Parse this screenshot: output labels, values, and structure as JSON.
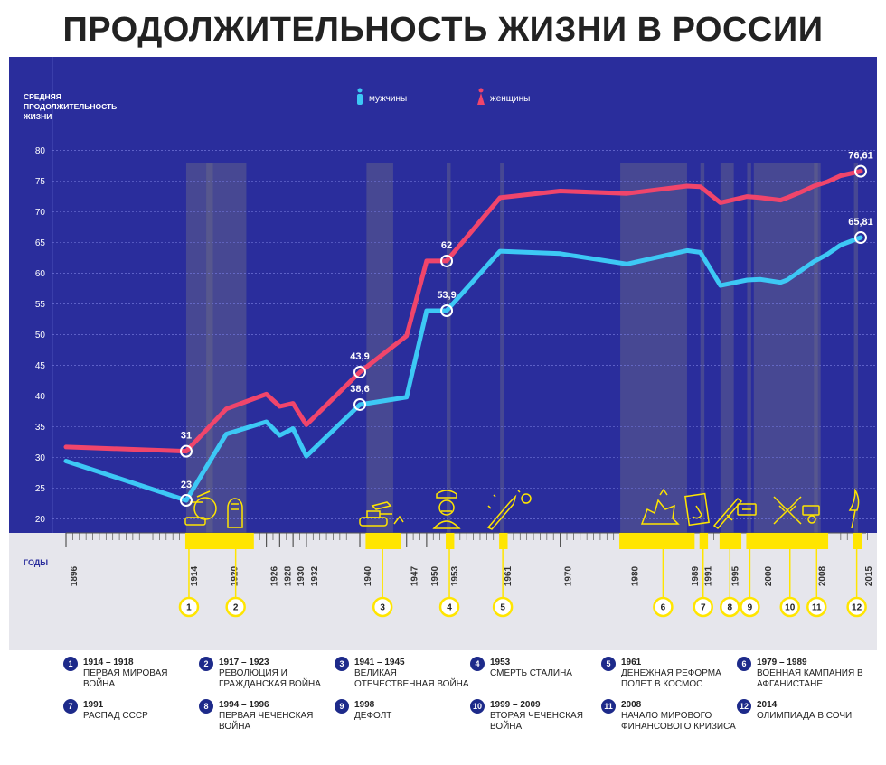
{
  "title": "ПРОДОЛЖИТЕЛЬНОСТЬ ЖИЗНИ В РОССИИ",
  "colors": {
    "panel": "#2a2d9c",
    "men": "#3dc8f5",
    "women": "#f0456b",
    "event": "#ffe500",
    "band": "#6b6b8a",
    "lower": "#e6e6ec"
  },
  "chart_data": {
    "type": "line",
    "ylabel": "СРЕДНЯЯ ПРОДОЛЖИТЕЛЬНОСТЬ ЖИЗНИ",
    "xlabel": "ГОДЫ",
    "ylim": [
      18,
      82
    ],
    "xlim": [
      1896,
      2016
    ],
    "yticks": [
      20,
      25,
      30,
      35,
      40,
      45,
      50,
      55,
      60,
      65,
      70,
      75,
      80
    ],
    "xticks": [
      1896,
      1914,
      1920,
      1926,
      1928,
      1930,
      1932,
      1940,
      1947,
      1950,
      1953,
      1961,
      1970,
      1980,
      1989,
      1991,
      1995,
      2000,
      2008,
      2015
    ],
    "legend": [
      {
        "name": "мужчины",
        "icon": "man-icon"
      },
      {
        "name": "женщины",
        "icon": "woman-icon"
      }
    ],
    "series": [
      {
        "name": "мужчины",
        "color": "#3dc8f5",
        "points": [
          [
            1896,
            29.4
          ],
          [
            1914,
            23
          ],
          [
            1920,
            33.8
          ],
          [
            1926,
            35.8
          ],
          [
            1928,
            33.6
          ],
          [
            1930,
            34.7
          ],
          [
            1932,
            30.2
          ],
          [
            1940,
            38.6
          ],
          [
            1947,
            39.8
          ],
          [
            1950,
            53.9
          ],
          [
            1953,
            53.9
          ],
          [
            1961,
            63.6
          ],
          [
            1970,
            63.2
          ],
          [
            1980,
            61.5
          ],
          [
            1989,
            63.7
          ],
          [
            1991,
            63.4
          ],
          [
            1994,
            58
          ],
          [
            1998,
            58.9
          ],
          [
            2000,
            59
          ],
          [
            2003,
            58.5
          ],
          [
            2004,
            58.9
          ],
          [
            2006,
            60.4
          ],
          [
            2008,
            61.9
          ],
          [
            2010,
            63.1
          ],
          [
            2012,
            64.6
          ],
          [
            2015,
            65.81
          ]
        ]
      },
      {
        "name": "женщины",
        "color": "#f0456b",
        "points": [
          [
            1896,
            31.7
          ],
          [
            1914,
            31
          ],
          [
            1920,
            37.9
          ],
          [
            1926,
            40.3
          ],
          [
            1928,
            38.3
          ],
          [
            1930,
            38.8
          ],
          [
            1932,
            35.3
          ],
          [
            1940,
            43.9
          ],
          [
            1947,
            49.8
          ],
          [
            1950,
            62
          ],
          [
            1953,
            62
          ],
          [
            1961,
            72.3
          ],
          [
            1970,
            73.4
          ],
          [
            1980,
            73
          ],
          [
            1989,
            74.2
          ],
          [
            1991,
            74.1
          ],
          [
            1994,
            71.5
          ],
          [
            1998,
            72.5
          ],
          [
            2000,
            72.3
          ],
          [
            2003,
            71.9
          ],
          [
            2004,
            72.3
          ],
          [
            2006,
            73.2
          ],
          [
            2008,
            74.2
          ],
          [
            2010,
            74.9
          ],
          [
            2012,
            75.9
          ],
          [
            2015,
            76.61
          ]
        ]
      }
    ],
    "annotations": [
      {
        "x": 1914,
        "y": 31,
        "label": "31",
        "series": "женщины"
      },
      {
        "x": 1914,
        "y": 23,
        "label": "23",
        "series": "мужчины"
      },
      {
        "x": 1940,
        "y": 43.9,
        "label": "43,9",
        "series": "женщины"
      },
      {
        "x": 1940,
        "y": 38.6,
        "label": "38,6",
        "series": "мужчины"
      },
      {
        "x": 1953,
        "y": 62,
        "label": "62",
        "series": "женщины"
      },
      {
        "x": 1953,
        "y": 53.9,
        "label": "53,9",
        "series": "мужчины"
      },
      {
        "x": 2015,
        "y": 76.61,
        "label": "76,61",
        "series": "женщины"
      },
      {
        "x": 2015,
        "y": 65.81,
        "label": "65,81",
        "series": "мужчины"
      }
    ],
    "periods": [
      {
        "id": 1,
        "from": 1914,
        "to": 1918,
        "marker": 1914
      },
      {
        "id": 2,
        "from": 1917,
        "to": 1923,
        "marker": 1921
      },
      {
        "id": 3,
        "from": 1941,
        "to": 1945,
        "marker": 1943
      },
      {
        "id": 4,
        "from": 1953,
        "to": 1953,
        "marker": 1953
      },
      {
        "id": 5,
        "from": 1961,
        "to": 1961,
        "marker": 1961
      },
      {
        "id": 6,
        "from": 1979,
        "to": 1989,
        "marker": 1985
      },
      {
        "id": 7,
        "from": 1991,
        "to": 1991,
        "marker": 1991
      },
      {
        "id": 8,
        "from": 1994,
        "to": 1996,
        "marker": 1995
      },
      {
        "id": 9,
        "from": 1998,
        "to": 1998,
        "marker": 1998
      },
      {
        "id": 10,
        "from": 1999,
        "to": 2009,
        "marker": 2004
      },
      {
        "id": 11,
        "from": 2008,
        "to": 2008,
        "marker": 2008
      },
      {
        "id": 12,
        "from": 2014,
        "to": 2014,
        "marker": 2014
      }
    ]
  },
  "events": [
    {
      "num": "1",
      "years": "1914 – 1918",
      "desc": "ПЕРВАЯ МИРОВАЯ ВОЙНА"
    },
    {
      "num": "2",
      "years": "1917 – 1923",
      "desc": "РЕВОЛЮЦИЯ И ГРАЖДАНСКАЯ ВОЙНА"
    },
    {
      "num": "3",
      "years": "1941 – 1945",
      "desc": "ВЕЛИКАЯ ОТЕЧЕСТВЕННАЯ ВОЙНА"
    },
    {
      "num": "4",
      "years": "1953",
      "desc": "СМЕРТЬ СТАЛИНА"
    },
    {
      "num": "5",
      "years": "1961",
      "desc": "ДЕНЕЖНАЯ РЕФОРМА ПОЛЕТ В КОСМОС"
    },
    {
      "num": "6",
      "years": "1979 – 1989",
      "desc": "ВОЕННАЯ КАМПАНИЯ В АФГАНИСТАНЕ"
    },
    {
      "num": "7",
      "years": "1991",
      "desc": "РАСПАД СССР"
    },
    {
      "num": "8",
      "years": "1994 – 1996",
      "desc": "ПЕРВАЯ ЧЕЧЕНСКАЯ ВОЙНА"
    },
    {
      "num": "9",
      "years": "1998",
      "desc": "ДЕФОЛТ"
    },
    {
      "num": "10",
      "years": "1999 – 2009",
      "desc": "ВТОРАЯ ЧЕЧЕНСКАЯ ВОЙНА"
    },
    {
      "num": "11",
      "years": "2008",
      "desc": "НАЧАЛО МИРОВОГО ФИНАНСОВОГО КРИЗИСА"
    },
    {
      "num": "12",
      "years": "2014",
      "desc": "ОЛИМПИАДА В СОЧИ"
    }
  ]
}
